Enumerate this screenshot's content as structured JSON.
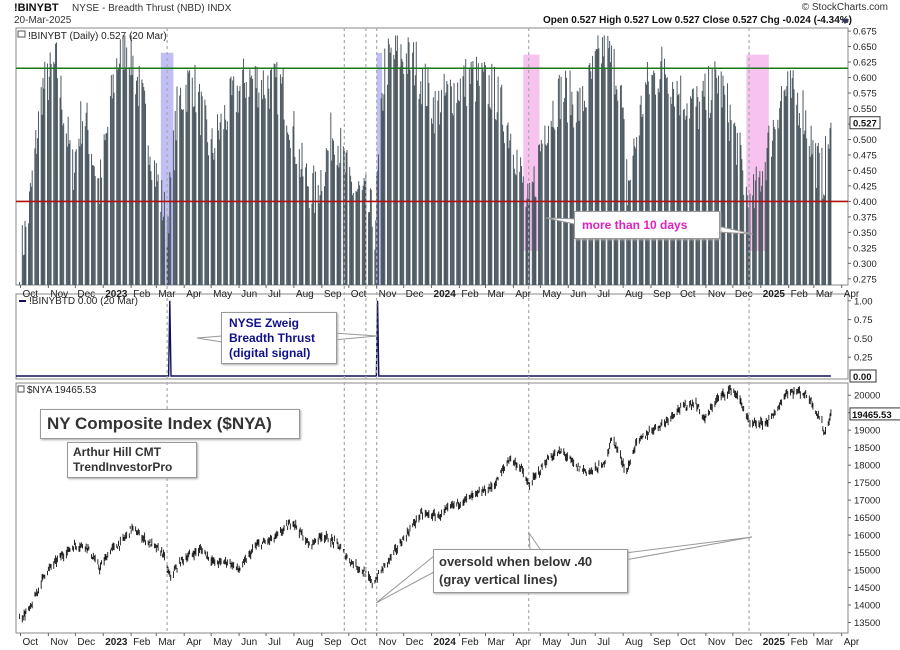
{
  "header": {
    "symbol": "!BINYBT",
    "name": "NYSE - Breadth Thrust (NBD)  INDX",
    "date": "20-Mar-2025",
    "credit": "© StockCharts.com",
    "ohlc": "Open 0.527  High 0.527  Low 0.527  Close 0.527  Chg -0.024 (-4.34%)"
  },
  "panels": {
    "top_label": "!BINYBT (Daily) 0.527 (20 Mar)",
    "mid_label": "!BINYBTD 0.00 (20 Mar)",
    "bottom_label": "$NYA 19465.53"
  },
  "annotations": {
    "more_than_10": "more than 10 days",
    "zweig": [
      "NYSE Zweig",
      "Breadth Thrust",
      "(digital signal)"
    ],
    "title": "NY Composite Index ($NYA)",
    "author": [
      "Arthur Hill CMT",
      "TrendInvestorPro"
    ],
    "oversold": [
      "oversold when below .40",
      "(gray vertical lines)"
    ]
  },
  "chart_data": [
    {
      "type": "bar",
      "title": "!BINYBT (Daily) 0.527 (20 Mar)",
      "ylim": [
        0.265,
        0.68
      ],
      "yticks": [
        0.275,
        0.3,
        0.325,
        0.35,
        0.375,
        0.4,
        0.425,
        0.45,
        0.475,
        0.5,
        0.525,
        0.55,
        0.575,
        0.6,
        0.625,
        0.65,
        0.675
      ],
      "last_value": "0.527",
      "reference_lines": [
        {
          "value": 0.615,
          "color": "#1a7a1a"
        },
        {
          "value": 0.4,
          "color": "#b01010"
        }
      ],
      "series_keypoints": [
        [
          "2022-09-30",
          0.3
        ],
        [
          "2022-10-10",
          0.38
        ],
        [
          "2022-10-25",
          0.58
        ],
        [
          "2022-11-10",
          0.62
        ],
        [
          "2022-11-28",
          0.45
        ],
        [
          "2022-12-10",
          0.55
        ],
        [
          "2022-12-28",
          0.42
        ],
        [
          "2023-01-15",
          0.62
        ],
        [
          "2023-01-28",
          0.66
        ],
        [
          "2023-02-15",
          0.55
        ],
        [
          "2023-03-01",
          0.44
        ],
        [
          "2023-03-13",
          0.36
        ],
        [
          "2023-03-25",
          0.56
        ],
        [
          "2023-04-10",
          0.6
        ],
        [
          "2023-05-01",
          0.48
        ],
        [
          "2023-05-20",
          0.55
        ],
        [
          "2023-06-10",
          0.6
        ],
        [
          "2023-07-01",
          0.59
        ],
        [
          "2023-07-20",
          0.58
        ],
        [
          "2023-08-10",
          0.45
        ],
        [
          "2023-08-25",
          0.41
        ],
        [
          "2023-09-15",
          0.52
        ],
        [
          "2023-10-01",
          0.43
        ],
        [
          "2023-10-20",
          0.4
        ],
        [
          "2023-10-30",
          0.36
        ],
        [
          "2023-11-10",
          0.62
        ],
        [
          "2023-11-25",
          0.64
        ],
        [
          "2023-12-15",
          0.62
        ],
        [
          "2024-01-05",
          0.55
        ],
        [
          "2024-01-25",
          0.58
        ],
        [
          "2024-02-15",
          0.6
        ],
        [
          "2024-03-10",
          0.58
        ],
        [
          "2024-04-01",
          0.5
        ],
        [
          "2024-04-18",
          0.38
        ],
        [
          "2024-05-05",
          0.52
        ],
        [
          "2024-05-25",
          0.58
        ],
        [
          "2024-06-15",
          0.55
        ],
        [
          "2024-07-10",
          0.65
        ],
        [
          "2024-07-28",
          0.6
        ],
        [
          "2024-08-06",
          0.42
        ],
        [
          "2024-08-25",
          0.58
        ],
        [
          "2024-09-15",
          0.62
        ],
        [
          "2024-10-05",
          0.57
        ],
        [
          "2024-10-25",
          0.55
        ],
        [
          "2024-11-15",
          0.6
        ],
        [
          "2024-12-05",
          0.5
        ],
        [
          "2024-12-20",
          0.38
        ],
        [
          "2025-01-08",
          0.48
        ],
        [
          "2025-01-25",
          0.58
        ],
        [
          "2025-02-15",
          0.56
        ],
        [
          "2025-03-05",
          0.46
        ],
        [
          "2025-03-12",
          0.44
        ],
        [
          "2025-03-20",
          0.527
        ]
      ],
      "highlights": [
        {
          "start": "2023-03-06",
          "end": "2023-03-20",
          "color": "blue"
        },
        {
          "start": "2023-11-01",
          "end": "2023-11-07",
          "color": "blue"
        },
        {
          "start": "2024-04-12",
          "end": "2024-04-30",
          "color": "pink"
        },
        {
          "start": "2024-12-16",
          "end": "2025-01-10",
          "color": "pink"
        }
      ]
    },
    {
      "type": "line",
      "title": "!BINYBTD 0.00 (20 Mar)",
      "ylim": [
        0,
        1.05
      ],
      "yticks": [
        0.25,
        0.5,
        0.75,
        1.0
      ],
      "last_value": "0.00",
      "spikes": [
        "2023-03-16",
        "2023-11-02"
      ]
    },
    {
      "type": "line",
      "title": "$NYA 19465.53",
      "ylim": [
        13200,
        20350
      ],
      "yticks": [
        13500,
        14000,
        14500,
        15000,
        15500,
        16000,
        16500,
        17000,
        17500,
        18000,
        18500,
        19000,
        19500,
        20000
      ],
      "last_value": "19465.53",
      "series_keypoints": [
        [
          "2022-09-30",
          13600
        ],
        [
          "2022-10-12",
          13900
        ],
        [
          "2022-10-28",
          14900
        ],
        [
          "2022-11-15",
          15400
        ],
        [
          "2022-11-30",
          15700
        ],
        [
          "2022-12-13",
          15700
        ],
        [
          "2022-12-28",
          15050
        ],
        [
          "2023-01-10",
          15600
        ],
        [
          "2023-01-20",
          15750
        ],
        [
          "2023-02-02",
          16200
        ],
        [
          "2023-02-20",
          15800
        ],
        [
          "2023-03-08",
          15500
        ],
        [
          "2023-03-16",
          14800
        ],
        [
          "2023-03-30",
          15300
        ],
        [
          "2023-04-20",
          15600
        ],
        [
          "2023-05-05",
          15200
        ],
        [
          "2023-05-20",
          15250
        ],
        [
          "2023-06-01",
          15000
        ],
        [
          "2023-06-20",
          15700
        ],
        [
          "2023-07-10",
          15900
        ],
        [
          "2023-07-31",
          16400
        ],
        [
          "2023-08-18",
          15700
        ],
        [
          "2023-09-01",
          16000
        ],
        [
          "2023-09-18",
          15750
        ],
        [
          "2023-10-01",
          15300
        ],
        [
          "2023-10-20",
          14900
        ],
        [
          "2023-10-27",
          14600
        ],
        [
          "2023-11-15",
          15300
        ],
        [
          "2023-12-01",
          15900
        ],
        [
          "2023-12-20",
          16600
        ],
        [
          "2024-01-10",
          16550
        ],
        [
          "2024-01-25",
          16850
        ],
        [
          "2024-02-15",
          17100
        ],
        [
          "2024-03-10",
          17400
        ],
        [
          "2024-03-28",
          18200
        ],
        [
          "2024-04-10",
          17900
        ],
        [
          "2024-04-18",
          17400
        ],
        [
          "2024-05-10",
          18200
        ],
        [
          "2024-05-25",
          18400
        ],
        [
          "2024-06-10",
          17950
        ],
        [
          "2024-06-25",
          17800
        ],
        [
          "2024-07-10",
          18000
        ],
        [
          "2024-07-20",
          18800
        ],
        [
          "2024-08-05",
          17800
        ],
        [
          "2024-08-15",
          18600
        ],
        [
          "2024-09-01",
          19000
        ],
        [
          "2024-09-15",
          19200
        ],
        [
          "2024-10-01",
          19600
        ],
        [
          "2024-10-20",
          19800
        ],
        [
          "2024-10-31",
          19300
        ],
        [
          "2024-11-12",
          19850
        ],
        [
          "2024-11-30",
          20200
        ],
        [
          "2024-12-10",
          19800
        ],
        [
          "2024-12-20",
          19150
        ],
        [
          "2025-01-05",
          19200
        ],
        [
          "2025-01-15",
          19400
        ],
        [
          "2025-01-30",
          20100
        ],
        [
          "2025-02-15",
          20100
        ],
        [
          "2025-02-25",
          19900
        ],
        [
          "2025-03-10",
          19200
        ],
        [
          "2025-03-13",
          18900
        ],
        [
          "2025-03-20",
          19465.53
        ]
      ]
    }
  ],
  "x_axis": {
    "ticks": [
      {
        "date": "2022-10-01",
        "label": "Oct",
        "bold": false
      },
      {
        "date": "2022-11-01",
        "label": "Nov",
        "bold": false
      },
      {
        "date": "2022-12-01",
        "label": "Dec",
        "bold": false
      },
      {
        "date": "2023-01-01",
        "label": "2023",
        "bold": true
      },
      {
        "date": "2023-02-01",
        "label": "Feb",
        "bold": false
      },
      {
        "date": "2023-03-01",
        "label": "Mar",
        "bold": false
      },
      {
        "date": "2023-04-01",
        "label": "Apr",
        "bold": false
      },
      {
        "date": "2023-05-01",
        "label": "May",
        "bold": false
      },
      {
        "date": "2023-06-01",
        "label": "Jun",
        "bold": false
      },
      {
        "date": "2023-07-01",
        "label": "Jul",
        "bold": false
      },
      {
        "date": "2023-08-01",
        "label": "Aug",
        "bold": false
      },
      {
        "date": "2023-09-01",
        "label": "Sep",
        "bold": false
      },
      {
        "date": "2023-10-01",
        "label": "Oct",
        "bold": false
      },
      {
        "date": "2023-11-01",
        "label": "Nov",
        "bold": false
      },
      {
        "date": "2023-12-01",
        "label": "Dec",
        "bold": false
      },
      {
        "date": "2024-01-01",
        "label": "2024",
        "bold": true
      },
      {
        "date": "2024-02-01",
        "label": "Feb",
        "bold": false
      },
      {
        "date": "2024-03-01",
        "label": "Mar",
        "bold": false
      },
      {
        "date": "2024-04-01",
        "label": "Apr",
        "bold": false
      },
      {
        "date": "2024-05-01",
        "label": "May",
        "bold": false
      },
      {
        "date": "2024-06-01",
        "label": "Jun",
        "bold": false
      },
      {
        "date": "2024-07-01",
        "label": "Jul",
        "bold": false
      },
      {
        "date": "2024-08-01",
        "label": "Aug",
        "bold": false
      },
      {
        "date": "2024-09-01",
        "label": "Sep",
        "bold": false
      },
      {
        "date": "2024-10-01",
        "label": "Oct",
        "bold": false
      },
      {
        "date": "2024-11-01",
        "label": "Nov",
        "bold": false
      },
      {
        "date": "2024-12-01",
        "label": "Dec",
        "bold": false
      },
      {
        "date": "2025-01-01",
        "label": "2025",
        "bold": true
      },
      {
        "date": "2025-02-01",
        "label": "Feb",
        "bold": false
      },
      {
        "date": "2025-03-01",
        "label": "Mar",
        "bold": false
      },
      {
        "date": "2025-04-01",
        "label": "Apr",
        "bold": false
      }
    ],
    "oversold_lines": [
      "2023-03-13",
      "2023-09-26",
      "2023-10-20",
      "2023-11-01",
      "2024-04-18",
      "2024-12-19"
    ]
  },
  "colors": {
    "bar": "#4a5760",
    "green_line": "#1a7a1a",
    "red_line": "#b01010",
    "magenta_text": "#e020c0",
    "navy_text": "#10108a",
    "blue_highlight": "#8c8cf0",
    "pink_highlight": "#f090e0"
  }
}
